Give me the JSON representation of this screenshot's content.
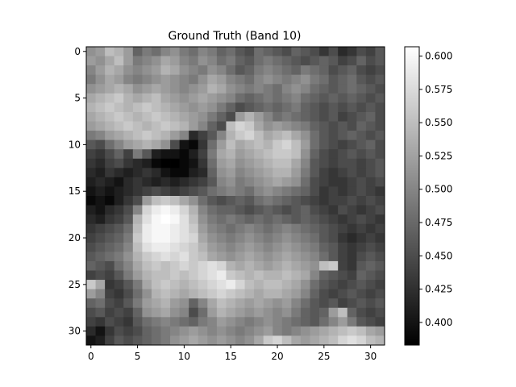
{
  "chart_data": {
    "type": "heatmap",
    "title": "Ground Truth (Band 10)",
    "xlabel": "",
    "ylabel": "",
    "x_ticks": [
      0,
      5,
      10,
      15,
      20,
      25,
      30
    ],
    "y_ticks": [
      0,
      5,
      10,
      15,
      20,
      25,
      30
    ],
    "colormap": "gray",
    "colorbar": {
      "min": 0.383,
      "max": 0.607,
      "ticks": [
        "0.400",
        "0.425",
        "0.450",
        "0.475",
        "0.500",
        "0.525",
        "0.550",
        "0.575",
        "0.600"
      ]
    },
    "grid_size": [
      32,
      32
    ],
    "values": [
      [
        0.51,
        0.52,
        0.55,
        0.54,
        0.52,
        0.47,
        0.49,
        0.48,
        0.5,
        0.51,
        0.49,
        0.48,
        0.5,
        0.49,
        0.47,
        0.48,
        0.46,
        0.45,
        0.48,
        0.47,
        0.46,
        0.45,
        0.47,
        0.46,
        0.45,
        0.43,
        0.45,
        0.42,
        0.43,
        0.45,
        0.44,
        0.46
      ],
      [
        0.52,
        0.51,
        0.53,
        0.55,
        0.52,
        0.49,
        0.5,
        0.51,
        0.53,
        0.52,
        0.5,
        0.49,
        0.51,
        0.5,
        0.48,
        0.49,
        0.47,
        0.46,
        0.48,
        0.49,
        0.48,
        0.47,
        0.46,
        0.45,
        0.46,
        0.47,
        0.46,
        0.44,
        0.45,
        0.47,
        0.45,
        0.46
      ],
      [
        0.5,
        0.52,
        0.54,
        0.53,
        0.51,
        0.5,
        0.51,
        0.52,
        0.54,
        0.53,
        0.51,
        0.5,
        0.49,
        0.51,
        0.5,
        0.48,
        0.46,
        0.47,
        0.49,
        0.5,
        0.49,
        0.48,
        0.47,
        0.49,
        0.48,
        0.47,
        0.45,
        0.46,
        0.47,
        0.45,
        0.44,
        0.45
      ],
      [
        0.49,
        0.51,
        0.53,
        0.52,
        0.5,
        0.49,
        0.5,
        0.51,
        0.52,
        0.51,
        0.5,
        0.49,
        0.51,
        0.53,
        0.52,
        0.5,
        0.49,
        0.48,
        0.5,
        0.51,
        0.5,
        0.49,
        0.5,
        0.51,
        0.49,
        0.48,
        0.46,
        0.47,
        0.48,
        0.46,
        0.45,
        0.46
      ],
      [
        0.51,
        0.52,
        0.53,
        0.54,
        0.53,
        0.51,
        0.52,
        0.53,
        0.52,
        0.51,
        0.5,
        0.51,
        0.52,
        0.54,
        0.53,
        0.51,
        0.5,
        0.49,
        0.5,
        0.49,
        0.48,
        0.5,
        0.51,
        0.5,
        0.48,
        0.47,
        0.46,
        0.47,
        0.48,
        0.47,
        0.46,
        0.45
      ],
      [
        0.53,
        0.54,
        0.55,
        0.56,
        0.54,
        0.53,
        0.54,
        0.55,
        0.53,
        0.52,
        0.51,
        0.52,
        0.53,
        0.52,
        0.51,
        0.5,
        0.48,
        0.47,
        0.48,
        0.49,
        0.48,
        0.49,
        0.5,
        0.48,
        0.47,
        0.46,
        0.47,
        0.46,
        0.47,
        0.46,
        0.45,
        0.46
      ],
      [
        0.54,
        0.55,
        0.56,
        0.55,
        0.54,
        0.55,
        0.56,
        0.55,
        0.54,
        0.53,
        0.52,
        0.51,
        0.52,
        0.51,
        0.49,
        0.47,
        0.45,
        0.46,
        0.47,
        0.48,
        0.47,
        0.48,
        0.49,
        0.47,
        0.46,
        0.45,
        0.46,
        0.45,
        0.46,
        0.45,
        0.46,
        0.45
      ],
      [
        0.53,
        0.54,
        0.55,
        0.56,
        0.55,
        0.54,
        0.55,
        0.56,
        0.55,
        0.54,
        0.53,
        0.52,
        0.51,
        0.49,
        0.47,
        0.45,
        0.52,
        0.54,
        0.52,
        0.5,
        0.48,
        0.49,
        0.48,
        0.47,
        0.46,
        0.45,
        0.46,
        0.44,
        0.45,
        0.46,
        0.47,
        0.45
      ],
      [
        0.52,
        0.53,
        0.54,
        0.55,
        0.56,
        0.55,
        0.54,
        0.55,
        0.56,
        0.55,
        0.54,
        0.52,
        0.5,
        0.47,
        0.45,
        0.55,
        0.57,
        0.56,
        0.53,
        0.51,
        0.52,
        0.51,
        0.5,
        0.49,
        0.47,
        0.46,
        0.45,
        0.46,
        0.45,
        0.47,
        0.46,
        0.45
      ],
      [
        0.49,
        0.5,
        0.52,
        0.53,
        0.54,
        0.55,
        0.56,
        0.55,
        0.54,
        0.52,
        0.5,
        0.42,
        0.44,
        0.46,
        0.5,
        0.54,
        0.56,
        0.57,
        0.55,
        0.53,
        0.54,
        0.55,
        0.53,
        0.51,
        0.48,
        0.46,
        0.45,
        0.46,
        0.47,
        0.46,
        0.45,
        0.46
      ],
      [
        0.46,
        0.45,
        0.48,
        0.5,
        0.52,
        0.53,
        0.54,
        0.53,
        0.51,
        0.45,
        0.4,
        0.39,
        0.43,
        0.48,
        0.52,
        0.55,
        0.53,
        0.54,
        0.55,
        0.54,
        0.56,
        0.57,
        0.55,
        0.52,
        0.48,
        0.46,
        0.45,
        0.44,
        0.45,
        0.46,
        0.47,
        0.45
      ],
      [
        0.44,
        0.43,
        0.45,
        0.47,
        0.44,
        0.49,
        0.46,
        0.41,
        0.4,
        0.4,
        0.39,
        0.41,
        0.44,
        0.49,
        0.53,
        0.54,
        0.52,
        0.53,
        0.54,
        0.55,
        0.56,
        0.56,
        0.55,
        0.51,
        0.47,
        0.45,
        0.44,
        0.45,
        0.46,
        0.45,
        0.46,
        0.45
      ],
      [
        0.43,
        0.42,
        0.44,
        0.45,
        0.43,
        0.42,
        0.41,
        0.39,
        0.38,
        0.38,
        0.39,
        0.4,
        0.43,
        0.48,
        0.52,
        0.53,
        0.51,
        0.52,
        0.53,
        0.54,
        0.55,
        0.55,
        0.53,
        0.5,
        0.46,
        0.45,
        0.44,
        0.45,
        0.45,
        0.44,
        0.45,
        0.46
      ],
      [
        0.42,
        0.41,
        0.43,
        0.42,
        0.41,
        0.42,
        0.43,
        0.42,
        0.4,
        0.39,
        0.39,
        0.41,
        0.42,
        0.47,
        0.51,
        0.52,
        0.5,
        0.51,
        0.52,
        0.53,
        0.54,
        0.54,
        0.52,
        0.49,
        0.46,
        0.44,
        0.43,
        0.44,
        0.45,
        0.44,
        0.45,
        0.46
      ],
      [
        0.41,
        0.42,
        0.41,
        0.4,
        0.42,
        0.43,
        0.42,
        0.41,
        0.42,
        0.41,
        0.42,
        0.43,
        0.44,
        0.46,
        0.5,
        0.51,
        0.49,
        0.5,
        0.51,
        0.52,
        0.53,
        0.52,
        0.51,
        0.48,
        0.45,
        0.44,
        0.43,
        0.43,
        0.44,
        0.45,
        0.44,
        0.45
      ],
      [
        0.4,
        0.41,
        0.4,
        0.41,
        0.42,
        0.43,
        0.44,
        0.45,
        0.44,
        0.43,
        0.44,
        0.45,
        0.46,
        0.48,
        0.49,
        0.5,
        0.49,
        0.48,
        0.5,
        0.51,
        0.5,
        0.49,
        0.48,
        0.47,
        0.45,
        0.43,
        0.44,
        0.43,
        0.44,
        0.45,
        0.44,
        0.43
      ],
      [
        0.39,
        0.4,
        0.39,
        0.41,
        0.43,
        0.45,
        0.52,
        0.55,
        0.56,
        0.55,
        0.53,
        0.51,
        0.48,
        0.46,
        0.45,
        0.46,
        0.47,
        0.46,
        0.48,
        0.49,
        0.48,
        0.47,
        0.46,
        0.45,
        0.44,
        0.43,
        0.44,
        0.44,
        0.45,
        0.44,
        0.45,
        0.44
      ],
      [
        0.41,
        0.4,
        0.42,
        0.43,
        0.45,
        0.5,
        0.57,
        0.59,
        0.6,
        0.59,
        0.57,
        0.54,
        0.5,
        0.48,
        0.47,
        0.47,
        0.46,
        0.45,
        0.46,
        0.47,
        0.46,
        0.45,
        0.46,
        0.47,
        0.45,
        0.44,
        0.43,
        0.45,
        0.44,
        0.43,
        0.44,
        0.45
      ],
      [
        0.42,
        0.41,
        0.43,
        0.44,
        0.46,
        0.54,
        0.58,
        0.6,
        0.61,
        0.6,
        0.58,
        0.55,
        0.51,
        0.49,
        0.48,
        0.49,
        0.48,
        0.47,
        0.48,
        0.47,
        0.48,
        0.47,
        0.46,
        0.47,
        0.46,
        0.45,
        0.44,
        0.43,
        0.44,
        0.45,
        0.44,
        0.43
      ],
      [
        0.43,
        0.44,
        0.45,
        0.46,
        0.48,
        0.55,
        0.59,
        0.6,
        0.6,
        0.59,
        0.58,
        0.56,
        0.52,
        0.5,
        0.49,
        0.48,
        0.49,
        0.5,
        0.49,
        0.48,
        0.49,
        0.5,
        0.49,
        0.48,
        0.47,
        0.46,
        0.45,
        0.44,
        0.43,
        0.44,
        0.43,
        0.44
      ],
      [
        0.44,
        0.45,
        0.46,
        0.47,
        0.49,
        0.56,
        0.59,
        0.6,
        0.6,
        0.59,
        0.58,
        0.57,
        0.53,
        0.51,
        0.5,
        0.49,
        0.5,
        0.51,
        0.5,
        0.49,
        0.5,
        0.51,
        0.5,
        0.49,
        0.48,
        0.46,
        0.45,
        0.43,
        0.42,
        0.43,
        0.44,
        0.43
      ],
      [
        0.45,
        0.46,
        0.47,
        0.48,
        0.5,
        0.55,
        0.58,
        0.59,
        0.59,
        0.58,
        0.57,
        0.56,
        0.54,
        0.52,
        0.51,
        0.5,
        0.51,
        0.52,
        0.51,
        0.5,
        0.51,
        0.52,
        0.51,
        0.5,
        0.49,
        0.47,
        0.46,
        0.44,
        0.43,
        0.44,
        0.45,
        0.44
      ],
      [
        0.46,
        0.47,
        0.48,
        0.49,
        0.51,
        0.54,
        0.56,
        0.57,
        0.58,
        0.57,
        0.58,
        0.56,
        0.55,
        0.53,
        0.52,
        0.51,
        0.52,
        0.53,
        0.52,
        0.51,
        0.52,
        0.53,
        0.52,
        0.51,
        0.5,
        0.48,
        0.46,
        0.44,
        0.43,
        0.45,
        0.46,
        0.45
      ],
      [
        0.47,
        0.46,
        0.45,
        0.48,
        0.5,
        0.53,
        0.55,
        0.56,
        0.55,
        0.56,
        0.57,
        0.56,
        0.57,
        0.58,
        0.57,
        0.54,
        0.53,
        0.54,
        0.53,
        0.52,
        0.53,
        0.54,
        0.53,
        0.52,
        0.51,
        0.55,
        0.56,
        0.44,
        0.43,
        0.46,
        0.47,
        0.46
      ],
      [
        0.44,
        0.45,
        0.44,
        0.46,
        0.49,
        0.52,
        0.54,
        0.55,
        0.55,
        0.56,
        0.55,
        0.56,
        0.57,
        0.58,
        0.59,
        0.56,
        0.55,
        0.54,
        0.55,
        0.54,
        0.54,
        0.55,
        0.54,
        0.53,
        0.5,
        0.47,
        0.46,
        0.45,
        0.44,
        0.47,
        0.46,
        0.45
      ],
      [
        0.56,
        0.53,
        0.43,
        0.44,
        0.46,
        0.49,
        0.53,
        0.55,
        0.56,
        0.55,
        0.54,
        0.55,
        0.56,
        0.57,
        0.58,
        0.59,
        0.57,
        0.55,
        0.54,
        0.55,
        0.55,
        0.54,
        0.53,
        0.51,
        0.48,
        0.46,
        0.45,
        0.44,
        0.45,
        0.46,
        0.45,
        0.44
      ],
      [
        0.52,
        0.5,
        0.44,
        0.43,
        0.45,
        0.48,
        0.51,
        0.54,
        0.55,
        0.54,
        0.53,
        0.54,
        0.55,
        0.56,
        0.57,
        0.56,
        0.55,
        0.54,
        0.53,
        0.54,
        0.54,
        0.53,
        0.52,
        0.5,
        0.47,
        0.45,
        0.44,
        0.45,
        0.46,
        0.45,
        0.44,
        0.45
      ],
      [
        0.47,
        0.48,
        0.45,
        0.44,
        0.46,
        0.49,
        0.52,
        0.53,
        0.54,
        0.52,
        0.51,
        0.47,
        0.5,
        0.53,
        0.55,
        0.54,
        0.53,
        0.52,
        0.53,
        0.52,
        0.51,
        0.52,
        0.5,
        0.48,
        0.46,
        0.45,
        0.46,
        0.44,
        0.45,
        0.46,
        0.45,
        0.46
      ],
      [
        0.45,
        0.46,
        0.44,
        0.45,
        0.44,
        0.47,
        0.51,
        0.52,
        0.53,
        0.51,
        0.5,
        0.45,
        0.48,
        0.52,
        0.54,
        0.53,
        0.52,
        0.51,
        0.52,
        0.51,
        0.5,
        0.51,
        0.49,
        0.47,
        0.46,
        0.47,
        0.52,
        0.55,
        0.47,
        0.45,
        0.44,
        0.45
      ],
      [
        0.44,
        0.43,
        0.45,
        0.44,
        0.43,
        0.46,
        0.48,
        0.49,
        0.5,
        0.49,
        0.48,
        0.47,
        0.49,
        0.5,
        0.52,
        0.51,
        0.5,
        0.49,
        0.5,
        0.51,
        0.5,
        0.49,
        0.48,
        0.47,
        0.46,
        0.48,
        0.5,
        0.52,
        0.49,
        0.46,
        0.45,
        0.44
      ],
      [
        0.42,
        0.4,
        0.43,
        0.45,
        0.44,
        0.45,
        0.47,
        0.48,
        0.49,
        0.5,
        0.51,
        0.52,
        0.51,
        0.5,
        0.51,
        0.5,
        0.49,
        0.5,
        0.51,
        0.52,
        0.5,
        0.49,
        0.5,
        0.51,
        0.52,
        0.53,
        0.54,
        0.55,
        0.56,
        0.55,
        0.53,
        0.52
      ],
      [
        0.4,
        0.41,
        0.44,
        0.46,
        0.45,
        0.46,
        0.47,
        0.48,
        0.49,
        0.51,
        0.52,
        0.53,
        0.52,
        0.51,
        0.52,
        0.51,
        0.5,
        0.51,
        0.53,
        0.56,
        0.57,
        0.55,
        0.53,
        0.52,
        0.53,
        0.54,
        0.55,
        0.57,
        0.58,
        0.57,
        0.55,
        0.54
      ]
    ]
  }
}
